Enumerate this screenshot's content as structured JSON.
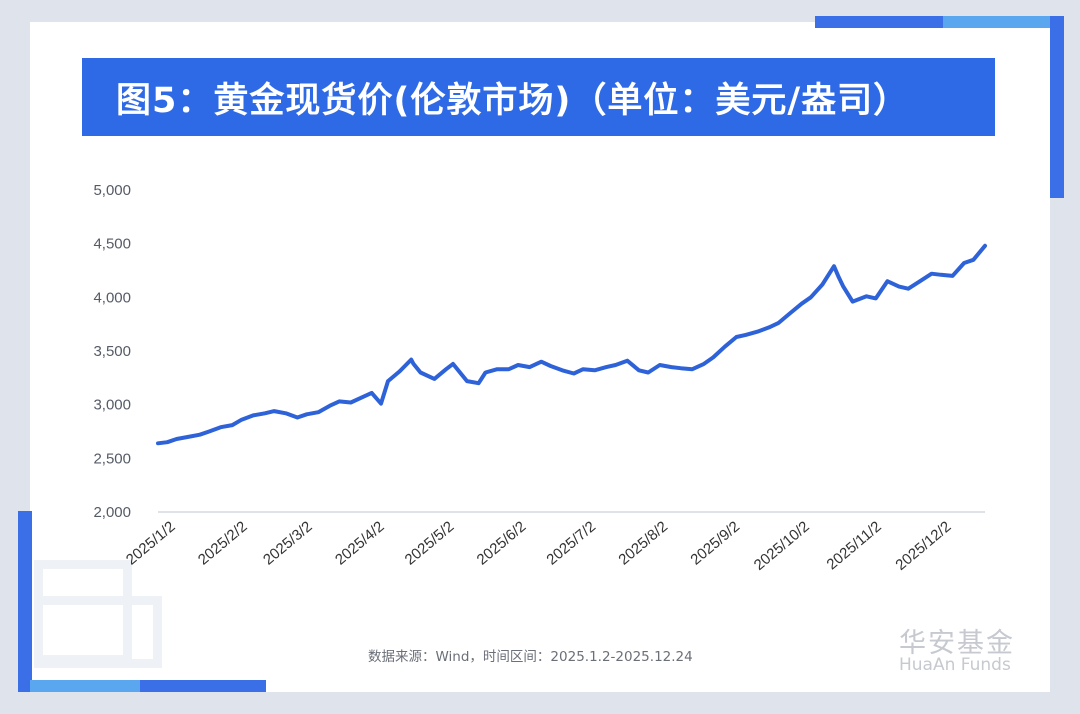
{
  "title": "图5：黄金现货价(伦敦市场)（单位：美元/盎司）",
  "source": "数据来源：Wind，时间区间：2025.1.2-2025.12.24",
  "logo": {
    "cn": "华安基金",
    "en": "HuaAn Funds"
  },
  "colors": {
    "accent": "#2f6ae6",
    "line": "#2e62d8",
    "background": "#dfe4ec"
  },
  "chart_data": {
    "type": "line",
    "title": "图5：黄金现货价(伦敦市场)（单位：美元/盎司）",
    "xlabel": "",
    "ylabel": "",
    "ylim": [
      2000,
      5000
    ],
    "yticks": [
      2000,
      2500,
      3000,
      3500,
      4000,
      4500,
      5000
    ],
    "ytick_labels": [
      "2,000",
      "2,500",
      "3,000",
      "3,500",
      "4,000",
      "4,500",
      "5,000"
    ],
    "xtick_labels": [
      "2025/1/2",
      "2025/2/2",
      "2025/3/2",
      "2025/4/2",
      "2025/5/2",
      "2025/6/2",
      "2025/7/2",
      "2025/8/2",
      "2025/9/2",
      "2025/10/2",
      "2025/11/2",
      "2025/12/2"
    ],
    "xlim": [
      "2025-01-02",
      "2025-12-24"
    ],
    "grid": false,
    "legend": "none",
    "series": [
      {
        "x": [
          "2025-01-02",
          "2025-01-06",
          "2025-01-10",
          "2025-01-15",
          "2025-01-20",
          "2025-01-24",
          "2025-01-29",
          "2025-02-03",
          "2025-02-07",
          "2025-02-12",
          "2025-02-17",
          "2025-02-21",
          "2025-02-26",
          "2025-03-03",
          "2025-03-07",
          "2025-03-12",
          "2025-03-17",
          "2025-03-21",
          "2025-03-26",
          "2025-04-01",
          "2025-04-04",
          "2025-04-08",
          "2025-04-11",
          "2025-04-16",
          "2025-04-21",
          "2025-04-22",
          "2025-04-25",
          "2025-05-01",
          "2025-05-06",
          "2025-05-09",
          "2025-05-15",
          "2025-05-20",
          "2025-05-23",
          "2025-05-28",
          "2025-06-02",
          "2025-06-06",
          "2025-06-11",
          "2025-06-16",
          "2025-06-20",
          "2025-06-25",
          "2025-06-30",
          "2025-07-04",
          "2025-07-09",
          "2025-07-14",
          "2025-07-18",
          "2025-07-23",
          "2025-07-28",
          "2025-08-01",
          "2025-08-06",
          "2025-08-11",
          "2025-08-15",
          "2025-08-20",
          "2025-08-25",
          "2025-08-29",
          "2025-09-03",
          "2025-09-08",
          "2025-09-12",
          "2025-09-17",
          "2025-09-22",
          "2025-09-26",
          "2025-10-01",
          "2025-10-06",
          "2025-10-10",
          "2025-10-15",
          "2025-10-20",
          "2025-10-22",
          "2025-10-24",
          "2025-10-28",
          "2025-11-03",
          "2025-11-07",
          "2025-11-12",
          "2025-11-17",
          "2025-11-21",
          "2025-11-26",
          "2025-12-01",
          "2025-12-05",
          "2025-12-10",
          "2025-12-15",
          "2025-12-19",
          "2025-12-24"
        ],
        "values": [
          2640,
          2650,
          2680,
          2700,
          2720,
          2750,
          2790,
          2810,
          2860,
          2900,
          2920,
          2940,
          2920,
          2880,
          2910,
          2930,
          2990,
          3030,
          3020,
          3080,
          3110,
          3010,
          3220,
          3310,
          3420,
          3380,
          3300,
          3240,
          3330,
          3380,
          3220,
          3200,
          3300,
          3330,
          3330,
          3370,
          3350,
          3400,
          3360,
          3320,
          3290,
          3330,
          3320,
          3350,
          3370,
          3410,
          3320,
          3300,
          3370,
          3350,
          3340,
          3330,
          3380,
          3440,
          3540,
          3630,
          3650,
          3680,
          3720,
          3760,
          3850,
          3940,
          4000,
          4120,
          4290,
          4190,
          4100,
          3960,
          4010,
          3990,
          4150,
          4100,
          4080,
          4150,
          4220,
          4210,
          4200,
          4320,
          4350,
          4480
        ]
      }
    ]
  }
}
